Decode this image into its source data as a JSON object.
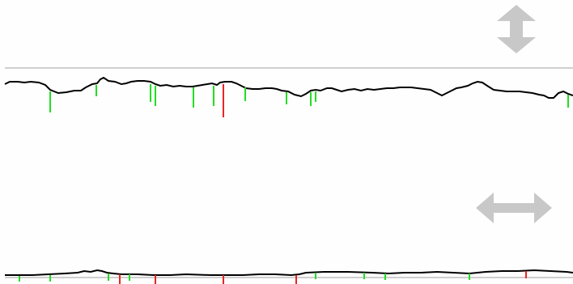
{
  "colors": {
    "background": "#fefefe",
    "divider": "#cfcfcf",
    "trace": "#000000",
    "marker_green": "#22dd22",
    "marker_red": "#ee2222",
    "handle": "#c8c8c8"
  },
  "icons": {
    "vertical_handle": "vertical-double-arrow-icon",
    "horizontal_handle": "horizontal-double-arrow-icon"
  }
}
